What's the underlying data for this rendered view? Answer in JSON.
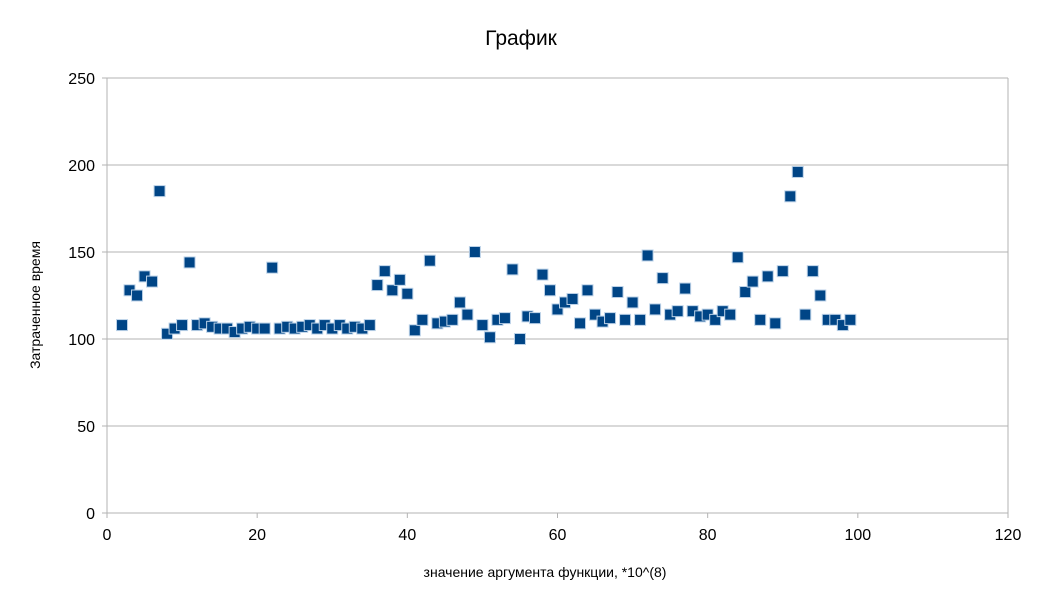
{
  "chart_data": {
    "type": "scatter",
    "title": "График",
    "xlabel": "значение аргумента функции, *10^(8)",
    "ylabel": "Затраченное время",
    "xlim": [
      0,
      120
    ],
    "ylim": [
      0,
      250
    ],
    "xticks": [
      0,
      20,
      40,
      60,
      80,
      100,
      120
    ],
    "yticks": [
      0,
      50,
      100,
      150,
      200,
      250
    ],
    "grid": "horizontal",
    "legend": "none",
    "marker_color": "#004586",
    "series": [
      {
        "x": [
          2,
          3,
          4,
          5,
          6,
          7,
          8,
          9,
          10,
          11,
          12,
          13,
          14,
          15,
          16,
          17,
          18,
          19,
          20,
          21,
          22,
          23,
          24,
          25,
          26,
          27,
          28,
          29,
          30,
          31,
          32,
          33,
          34,
          35,
          36,
          37,
          38,
          39,
          40,
          41,
          42,
          43,
          44,
          45,
          46,
          47,
          48,
          49,
          50,
          51,
          52,
          53,
          54,
          55,
          56,
          57,
          58,
          59,
          60,
          61,
          62,
          63,
          64,
          65,
          66,
          67,
          68,
          69,
          70,
          71,
          72,
          73,
          74,
          75,
          76,
          77,
          78,
          79,
          80,
          81,
          82,
          83,
          84,
          85,
          86,
          87,
          88,
          89,
          90,
          91,
          92,
          93,
          94,
          95,
          96,
          97,
          98,
          99
        ],
        "y": [
          108,
          128,
          125,
          136,
          133,
          185,
          103,
          106,
          108,
          144,
          108,
          109,
          107,
          106,
          106,
          104,
          106,
          107,
          106,
          106,
          141,
          106,
          107,
          106,
          107,
          108,
          106,
          108,
          106,
          108,
          106,
          107,
          106,
          108,
          131,
          139,
          128,
          134,
          126,
          105,
          111,
          145,
          109,
          110,
          111,
          121,
          114,
          150,
          108,
          101,
          111,
          112,
          140,
          100,
          113,
          112,
          137,
          128,
          117,
          121,
          123,
          109,
          128,
          114,
          110,
          112,
          127,
          111,
          121,
          111,
          148,
          117,
          135,
          114,
          116,
          129,
          116,
          113,
          114,
          111,
          116,
          114,
          147,
          127,
          133,
          111,
          136,
          109,
          139,
          182,
          196,
          114,
          139,
          125,
          111,
          111,
          108,
          111
        ]
      }
    ]
  }
}
